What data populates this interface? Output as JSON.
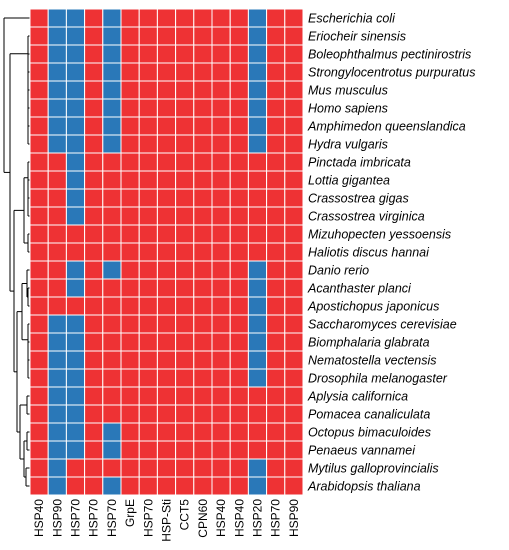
{
  "colors": {
    "present": "#ee3234",
    "absent": "#2a78b8",
    "grid": "#ffffff"
  },
  "chart_data": {
    "type": "heatmap",
    "title": "",
    "columns": [
      "HSP40",
      "HSP90",
      "HSP70",
      "HSP70",
      "HSP70",
      "GrpE",
      "HSP70",
      "HSP-Sti",
      "CCT5",
      "CPN60",
      "HSP40",
      "HSP40",
      "HSP20",
      "HSP70",
      "HSP90"
    ],
    "rows": [
      "Escherichia coli",
      "Eriocheir sinensis",
      "Boleophthalmus pectinirostris",
      "Strongylocentrotus purpuratus",
      "Mus musculus",
      "Homo sapiens",
      "Amphimedon queenslandica",
      "Hydra vulgaris",
      "Pinctada imbricata",
      "Lottia gigantea",
      "Crassostrea gigas",
      "Crassostrea virginica",
      "Mizuhopecten yessoensis",
      "Haliotis discus hannai",
      "Danio rerio",
      "Acanthaster planci",
      "Apostichopus japonicus",
      "Saccharomyces cerevisiae",
      "Biomphalaria glabrata",
      "Nematostella vectensis",
      "Drosophila melanogaster",
      "Aplysia californica",
      "Pomacea canaliculata",
      "Octopus bimaculoides",
      "Penaeus vannamei",
      "Mytilus galloprovincialis",
      "Arabidopsis thaliana"
    ],
    "values": [
      [
        1,
        0,
        0,
        1,
        0,
        1,
        1,
        1,
        1,
        1,
        1,
        1,
        0,
        1,
        1
      ],
      [
        1,
        0,
        0,
        1,
        0,
        1,
        1,
        1,
        1,
        1,
        1,
        1,
        0,
        1,
        1
      ],
      [
        1,
        0,
        0,
        1,
        0,
        1,
        1,
        1,
        1,
        1,
        1,
        1,
        0,
        1,
        1
      ],
      [
        1,
        0,
        0,
        1,
        0,
        1,
        1,
        1,
        1,
        1,
        1,
        1,
        0,
        1,
        1
      ],
      [
        1,
        0,
        0,
        1,
        0,
        1,
        1,
        1,
        1,
        1,
        1,
        1,
        0,
        1,
        1
      ],
      [
        1,
        0,
        0,
        1,
        0,
        1,
        1,
        1,
        1,
        1,
        1,
        1,
        0,
        1,
        1
      ],
      [
        1,
        0,
        0,
        1,
        0,
        1,
        1,
        1,
        1,
        1,
        1,
        1,
        0,
        1,
        1
      ],
      [
        1,
        0,
        0,
        1,
        0,
        1,
        1,
        1,
        1,
        1,
        1,
        1,
        0,
        1,
        1
      ],
      [
        1,
        1,
        0,
        1,
        1,
        1,
        1,
        1,
        1,
        1,
        1,
        1,
        1,
        1,
        1
      ],
      [
        1,
        1,
        0,
        1,
        1,
        1,
        1,
        1,
        1,
        1,
        1,
        1,
        1,
        1,
        1
      ],
      [
        1,
        1,
        0,
        1,
        1,
        1,
        1,
        1,
        1,
        1,
        1,
        1,
        1,
        1,
        1
      ],
      [
        1,
        1,
        0,
        1,
        1,
        1,
        1,
        1,
        1,
        1,
        1,
        1,
        1,
        1,
        1
      ],
      [
        1,
        1,
        1,
        1,
        1,
        1,
        1,
        1,
        1,
        1,
        1,
        1,
        1,
        1,
        1
      ],
      [
        1,
        1,
        1,
        1,
        1,
        1,
        1,
        1,
        1,
        1,
        1,
        1,
        1,
        1,
        1
      ],
      [
        1,
        1,
        0,
        1,
        0,
        1,
        1,
        1,
        1,
        1,
        1,
        1,
        0,
        1,
        1
      ],
      [
        1,
        1,
        0,
        1,
        1,
        1,
        1,
        1,
        1,
        1,
        1,
        1,
        0,
        1,
        1
      ],
      [
        1,
        1,
        1,
        1,
        1,
        1,
        1,
        1,
        1,
        1,
        1,
        1,
        0,
        1,
        1
      ],
      [
        1,
        0,
        0,
        1,
        1,
        1,
        1,
        1,
        1,
        1,
        1,
        1,
        0,
        1,
        1
      ],
      [
        1,
        0,
        0,
        1,
        1,
        1,
        1,
        1,
        1,
        1,
        1,
        1,
        0,
        1,
        1
      ],
      [
        1,
        0,
        0,
        1,
        1,
        1,
        1,
        1,
        1,
        1,
        1,
        1,
        0,
        1,
        1
      ],
      [
        1,
        0,
        0,
        1,
        1,
        1,
        1,
        1,
        1,
        1,
        1,
        1,
        0,
        1,
        1
      ],
      [
        1,
        0,
        0,
        1,
        1,
        1,
        1,
        1,
        1,
        1,
        1,
        1,
        1,
        1,
        1
      ],
      [
        1,
        0,
        0,
        1,
        1,
        1,
        1,
        1,
        1,
        1,
        1,
        1,
        1,
        1,
        1
      ],
      [
        1,
        0,
        0,
        1,
        0,
        1,
        1,
        1,
        1,
        1,
        1,
        1,
        1,
        1,
        1
      ],
      [
        1,
        0,
        0,
        1,
        0,
        1,
        1,
        1,
        1,
        1,
        1,
        1,
        1,
        1,
        1
      ],
      [
        1,
        0,
        1,
        1,
        1,
        1,
        1,
        1,
        1,
        1,
        1,
        1,
        0,
        1,
        1
      ],
      [
        1,
        0,
        1,
        1,
        0,
        1,
        1,
        1,
        1,
        1,
        1,
        1,
        0,
        1,
        1
      ]
    ],
    "legend": "none",
    "grid": true,
    "row_dendrogram": true
  }
}
